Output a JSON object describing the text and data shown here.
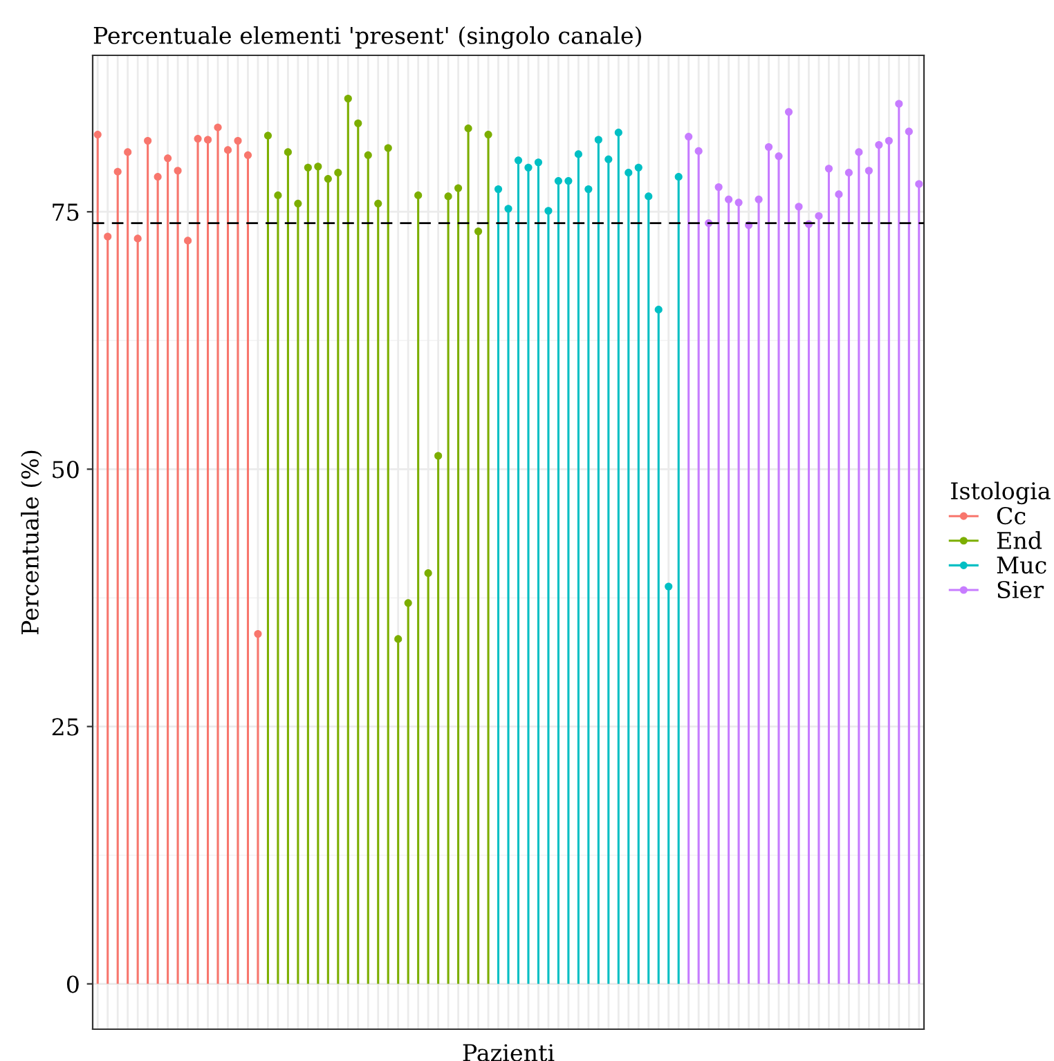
{
  "chart_data": {
    "type": "lollipop",
    "title": "Percentuale elementi 'present' (singolo canale)",
    "xlabel": "Pazienti",
    "ylabel": "Percentuale (%)",
    "legend_title": "Istologia",
    "legend": "right",
    "grid": true,
    "marker": "circle",
    "categories": [
      null,
      null,
      null,
      null,
      null,
      null,
      null,
      null,
      null,
      null,
      null,
      null,
      null,
      null,
      null,
      null,
      null,
      null,
      null,
      null,
      null,
      null,
      null,
      null,
      null,
      null,
      null,
      null,
      null,
      null,
      null,
      null,
      null,
      null,
      null,
      null,
      null,
      null,
      null,
      null,
      null,
      null,
      null,
      null,
      null,
      null,
      null,
      null,
      null,
      null,
      null,
      null,
      null,
      null,
      null,
      null,
      null,
      null,
      null,
      null,
      null,
      null,
      null,
      null,
      null,
      null,
      null,
      null,
      null,
      null,
      null,
      null,
      null,
      null,
      null,
      null,
      null,
      null,
      null,
      null,
      null,
      null,
      null
    ],
    "ylim": [
      -4.4,
      90.2
    ],
    "yticks": [
      0,
      25,
      50,
      75
    ],
    "ref_lines": [
      {
        "axis": "y",
        "value": 73.9,
        "color": "#000000",
        "line_style": "dashed"
      }
    ],
    "series": [
      {
        "name": "Cc",
        "color": "#f8766d",
        "values": [
          82.5,
          72.6,
          78.9,
          80.8,
          72.4,
          81.9,
          78.4,
          80.2,
          79.0,
          72.2,
          82.1,
          82.0,
          83.2,
          81.0,
          81.9,
          80.5,
          34.0,
          null,
          null,
          null,
          null,
          null,
          null,
          null,
          null,
          null,
          null,
          null,
          null,
          null,
          null,
          null,
          null,
          null,
          null,
          null,
          null,
          null,
          null,
          null,
          null,
          null,
          null,
          null,
          null,
          null,
          null,
          null,
          null,
          null,
          null,
          null,
          null,
          null,
          null,
          null,
          null,
          null,
          null,
          null,
          null,
          null,
          null,
          null,
          null,
          null,
          null,
          null,
          null,
          null,
          null,
          null,
          null,
          null,
          null,
          null,
          null,
          null,
          null,
          null,
          null,
          null,
          null
        ]
      },
      {
        "name": "End",
        "color": "#7cae00",
        "values": [
          null,
          null,
          null,
          null,
          null,
          null,
          null,
          null,
          null,
          null,
          null,
          null,
          null,
          null,
          null,
          null,
          null,
          82.4,
          76.6,
          80.8,
          75.8,
          79.3,
          79.4,
          78.2,
          78.8,
          86.0,
          83.6,
          80.5,
          75.8,
          81.2,
          33.5,
          37.0,
          76.6,
          39.9,
          51.3,
          76.5,
          77.3,
          83.1,
          73.1,
          82.5,
          null,
          null,
          null,
          null,
          null,
          null,
          null,
          null,
          null,
          null,
          null,
          null,
          null,
          null,
          null,
          null,
          null,
          null,
          null,
          null,
          null,
          null,
          null,
          null,
          null,
          null,
          null,
          null,
          null,
          null,
          null,
          null,
          null,
          null,
          null,
          null,
          null,
          null,
          null,
          null,
          null,
          null,
          null
        ]
      },
      {
        "name": "Muc",
        "color": "#00bfc4",
        "values": [
          null,
          null,
          null,
          null,
          null,
          null,
          null,
          null,
          null,
          null,
          null,
          null,
          null,
          null,
          null,
          null,
          null,
          null,
          null,
          null,
          null,
          null,
          null,
          null,
          null,
          null,
          null,
          null,
          null,
          null,
          null,
          null,
          null,
          null,
          null,
          null,
          null,
          null,
          null,
          null,
          77.2,
          75.3,
          80.0,
          79.3,
          79.8,
          75.1,
          78.0,
          78.0,
          80.6,
          77.2,
          82.0,
          80.1,
          82.7,
          78.8,
          79.3,
          76.5,
          65.5,
          38.6,
          78.4,
          null,
          null,
          null,
          null,
          null,
          null,
          null,
          null,
          null,
          null,
          null,
          null,
          null,
          null,
          null,
          null,
          null,
          null,
          null,
          null,
          null,
          null,
          null,
          null
        ]
      },
      {
        "name": "Sier",
        "color": "#c77cff",
        "values": [
          null,
          null,
          null,
          null,
          null,
          null,
          null,
          null,
          null,
          null,
          null,
          null,
          null,
          null,
          null,
          null,
          null,
          null,
          null,
          null,
          null,
          null,
          null,
          null,
          null,
          null,
          null,
          null,
          null,
          null,
          null,
          null,
          null,
          null,
          null,
          null,
          null,
          null,
          null,
          null,
          null,
          null,
          null,
          null,
          null,
          null,
          null,
          null,
          null,
          null,
          null,
          null,
          null,
          null,
          null,
          null,
          null,
          null,
          null,
          82.3,
          80.9,
          73.9,
          77.4,
          76.2,
          75.9,
          73.7,
          76.2,
          81.3,
          80.4,
          84.7,
          75.5,
          73.8,
          74.6,
          79.2,
          76.7,
          78.8,
          80.8,
          79.0,
          81.5,
          81.9,
          85.5,
          82.8,
          77.7
        ]
      }
    ]
  }
}
